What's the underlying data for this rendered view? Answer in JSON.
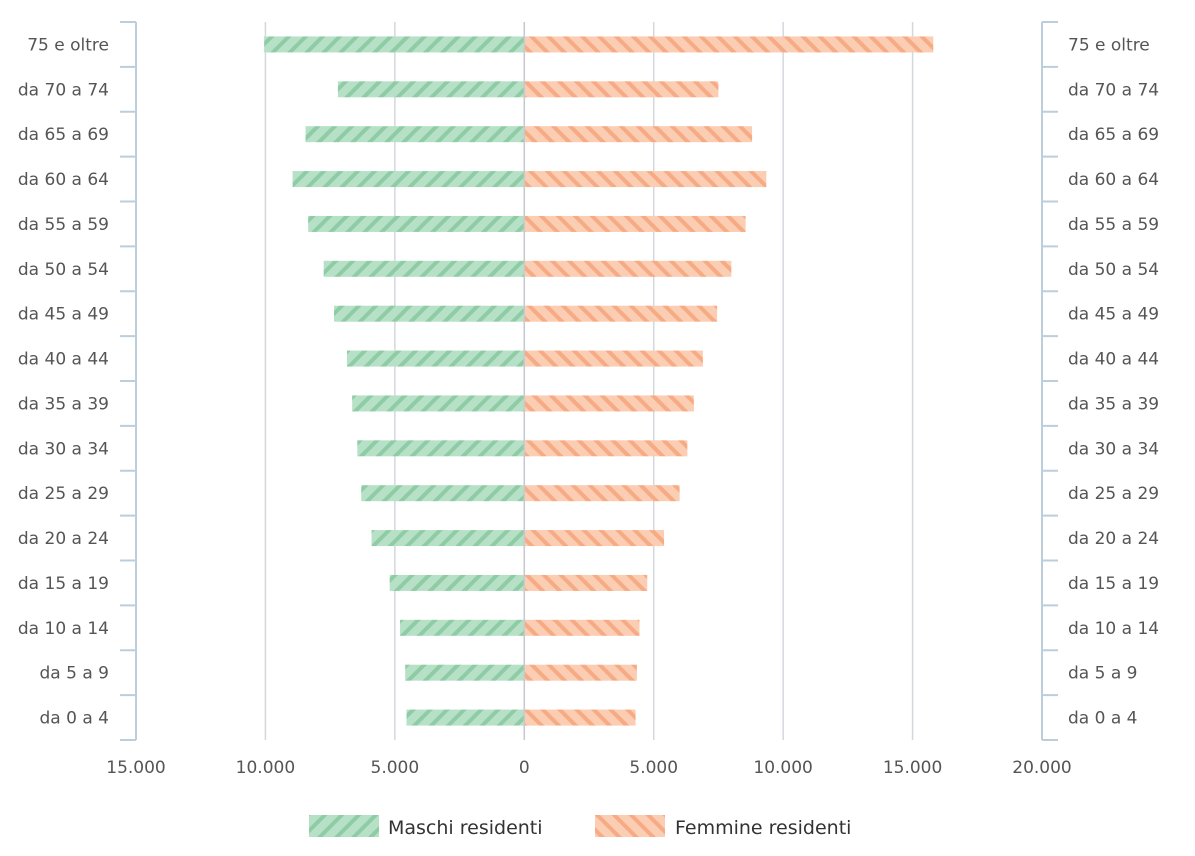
{
  "chart_data": {
    "type": "bar",
    "orientation": "horizontal",
    "categories": [
      "75 e oltre",
      "da 70 a 74",
      "da 65 a 69",
      "da 60 a 64",
      "da 55 a 59",
      "da 50 a 54",
      "da 45 a 49",
      "da 40 a 44",
      "da 35 a 39",
      "da 30 a 34",
      "da 25 a 29",
      "da 20 a 24",
      "da 15 a 19",
      "da 10 a 14",
      "da 5 a 9",
      "da 0 a 4"
    ],
    "series": [
      {
        "name": "Maschi residenti",
        "direction": "left",
        "color": "#b7e1c6",
        "stripe_color": "#8fcca6",
        "values": [
          10050,
          7200,
          8450,
          8950,
          8350,
          7750,
          7350,
          6850,
          6650,
          6450,
          6300,
          5900,
          5200,
          4800,
          4600,
          4550
        ]
      },
      {
        "name": "Femmine residenti",
        "direction": "right",
        "color": "#fbcdb3",
        "stripe_color": "#f7ab85",
        "values": [
          15800,
          7500,
          8800,
          9350,
          8550,
          8000,
          7450,
          6900,
          6550,
          6300,
          6000,
          5400,
          4750,
          4450,
          4350,
          4300
        ]
      }
    ],
    "xaxis": {
      "min": -15000,
      "max": 20000,
      "ticks": [
        -15000,
        -10000,
        -5000,
        0,
        5000,
        10000,
        15000,
        20000
      ],
      "tick_labels": [
        "15.000",
        "10.000",
        "5.000",
        "0",
        "5.000",
        "10.000",
        "15.000",
        "20.000"
      ]
    },
    "grid": true,
    "legend": {
      "position": "bottom-center"
    },
    "title": "",
    "xlabel": "",
    "ylabel": ""
  }
}
